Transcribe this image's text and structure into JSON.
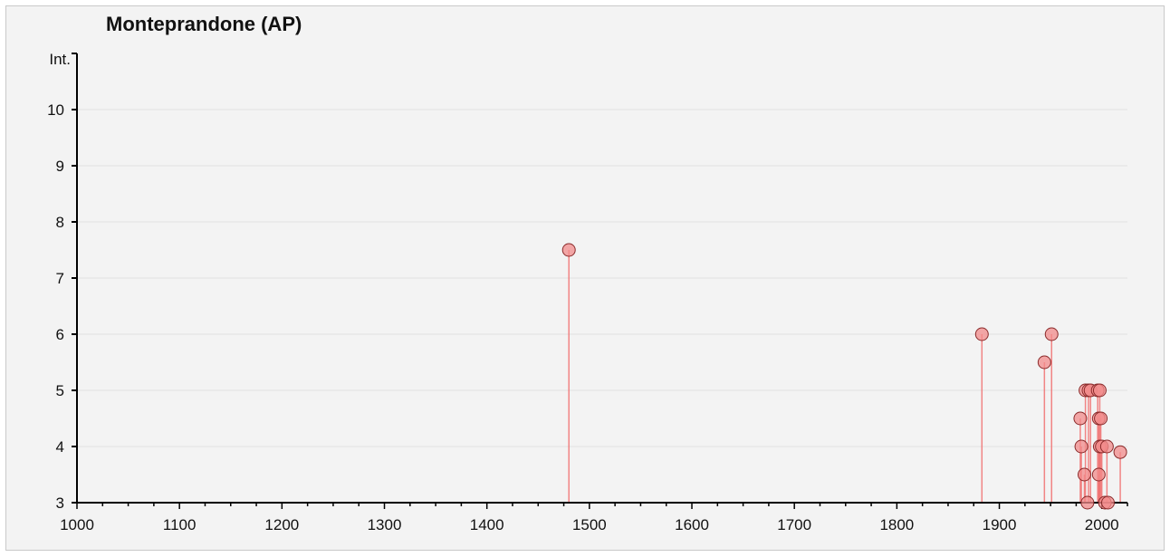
{
  "chart_data": {
    "type": "scatter",
    "title": "Monteprandone (AP)",
    "xlabel": "",
    "ylabel": "Int.",
    "xlim": [
      1000,
      2025
    ],
    "ylim": [
      3,
      11
    ],
    "xticks": [
      1000,
      1100,
      1200,
      1300,
      1400,
      1500,
      1600,
      1700,
      1800,
      1900,
      2000
    ],
    "yticks": [
      3,
      4,
      5,
      6,
      7,
      8,
      9,
      10
    ],
    "grid": "horizontal",
    "marker_style": "circle-with-drop-line",
    "colors": {
      "marker_fill": "#f28b8b",
      "marker_stroke": "#8a2a2a",
      "drop_line": "#f07070",
      "axis": "#000000",
      "grid": "#e2e2e2"
    },
    "points": [
      {
        "year": 1480,
        "int": 7.5
      },
      {
        "year": 1883,
        "int": 6.0
      },
      {
        "year": 1944,
        "int": 5.5
      },
      {
        "year": 1951,
        "int": 6.0
      },
      {
        "year": 1979,
        "int": 4.5
      },
      {
        "year": 1980,
        "int": 4.0
      },
      {
        "year": 1983,
        "int": 3.5
      },
      {
        "year": 1984,
        "int": 5.0
      },
      {
        "year": 1986,
        "int": 3.0
      },
      {
        "year": 1987,
        "int": 5.0
      },
      {
        "year": 1989,
        "int": 5.0
      },
      {
        "year": 1996,
        "int": 5.0
      },
      {
        "year": 1997,
        "int": 4.5
      },
      {
        "year": 1997,
        "int": 3.5
      },
      {
        "year": 1998,
        "int": 4.0
      },
      {
        "year": 1998,
        "int": 5.0
      },
      {
        "year": 1999,
        "int": 4.5
      },
      {
        "year": 2000,
        "int": 4.0
      },
      {
        "year": 2003,
        "int": 3.0
      },
      {
        "year": 2005,
        "int": 4.0
      },
      {
        "year": 2006,
        "int": 3.0
      },
      {
        "year": 2018,
        "int": 3.9
      }
    ]
  }
}
